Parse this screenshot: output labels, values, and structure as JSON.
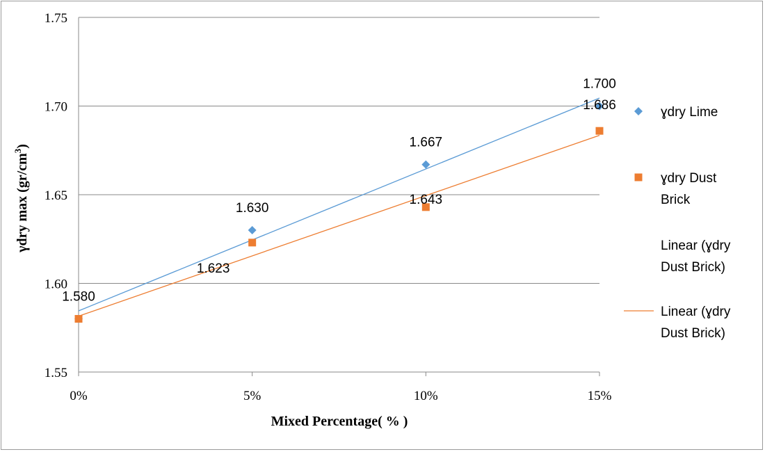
{
  "chart_data": {
    "type": "scatter",
    "title": "",
    "xlabel": "Mixed Percentage( % )",
    "ylabel_main": "γdry max  (gr/cm",
    "ylabel_sup": "3",
    "ylabel_close": ")",
    "x_ticks": [
      "0%",
      "5%",
      "10%",
      "15%"
    ],
    "y_ticks": [
      "1.55",
      "1.60",
      "1.65",
      "1.70",
      "1.75"
    ],
    "ylim": [
      1.55,
      1.75
    ],
    "grid": true,
    "legend_position": "right",
    "series": [
      {
        "name": "ɣdry Lime",
        "marker": "diamond",
        "color": "#5b9bd5",
        "x": [
          0,
          5,
          10,
          15
        ],
        "y": [
          1.58,
          1.63,
          1.667,
          1.7
        ],
        "labels": [
          "1.580",
          "1.630",
          "1.667",
          "1.700"
        ]
      },
      {
        "name": "ɣdry Dust Brick",
        "marker": "square",
        "color": "#ed7d31",
        "x": [
          0,
          5,
          10,
          15
        ],
        "y": [
          1.58,
          1.623,
          1.643,
          1.686
        ],
        "labels": [
          "1.580",
          "1.623",
          "1.643",
          "1.686"
        ]
      }
    ],
    "trendlines": [
      {
        "name": "Linear (ɣdry Dust Brick)",
        "of": 0,
        "color": "#5b9bd5",
        "y_start": 1.5845,
        "y_end": 1.7045
      },
      {
        "name": "Linear (ɣdry Dust Brick)",
        "of": 1,
        "color": "#ed7d31",
        "y_start": 1.5815,
        "y_end": 1.6835
      }
    ],
    "legend": [
      {
        "lines": [
          "ɣdry Lime"
        ],
        "symbol": "diamond",
        "color": "#5b9bd5"
      },
      {
        "lines": [
          "ɣdry Dust",
          "Brick"
        ],
        "symbol": "square",
        "color": "#ed7d31"
      },
      {
        "lines": [
          "Linear (ɣdry",
          "Dust Brick)"
        ],
        "symbol": "none",
        "color": "#5b9bd5"
      },
      {
        "lines": [
          "Linear (ɣdry",
          "Dust Brick)"
        ],
        "symbol": "line",
        "color": "#ed7d31"
      }
    ]
  }
}
